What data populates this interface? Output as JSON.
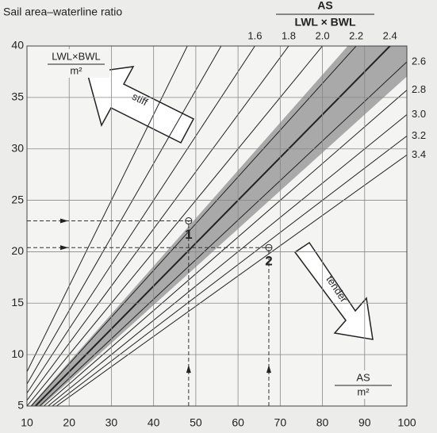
{
  "chart_data": {
    "type": "nomogram",
    "title": "Sail area–waterline ratio",
    "ratio_label": {
      "top": "AS",
      "bottom": "LWL × BWL"
    },
    "y_label": {
      "top": "LWL×BWL",
      "bottom": "m²"
    },
    "x_label": {
      "top": "AS",
      "bottom": "m²"
    },
    "xlim": [
      10,
      100
    ],
    "ylim": [
      5,
      40
    ],
    "xticks": [
      10,
      20,
      30,
      40,
      50,
      60,
      70,
      80,
      90,
      100
    ],
    "yticks": [
      5,
      10,
      15,
      20,
      25,
      30,
      35,
      40
    ],
    "grid": true,
    "lines": [
      {
        "value": 1.2,
        "label": null
      },
      {
        "value": 1.4,
        "label": null
      },
      {
        "value": 1.6,
        "label": "1.6"
      },
      {
        "value": 1.8,
        "label": "1.8"
      },
      {
        "value": 2,
        "label": "2.0"
      },
      {
        "value": 2.2,
        "label": "2.2"
      },
      {
        "value": 2.4,
        "label": "2.4"
      },
      {
        "value": 2.6,
        "label": "2.6"
      },
      {
        "value": 2.8,
        "label": "2.8"
      },
      {
        "value": 3,
        "label": "3.0"
      },
      {
        "value": 3.2,
        "label": "3.2"
      },
      {
        "value": 3.4,
        "label": "3.4"
      }
    ],
    "band": [
      2.15,
      2.7
    ],
    "band_color": "#a9a9a9",
    "points": [
      {
        "label": "1",
        "x": 48.3,
        "y": 23
      },
      {
        "label": "2",
        "x": 67.3,
        "y": 20.4
      }
    ],
    "arrows": [
      "stiff",
      "tender"
    ]
  }
}
